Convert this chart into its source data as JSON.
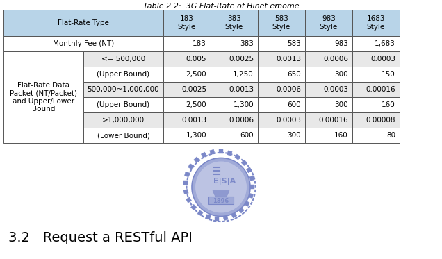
{
  "title": "Table 2.2:  3G Flat-Rate of Hinet emome",
  "col0_header": "Flat-Rate Type",
  "col_headers": [
    "183\nStyle",
    "383\nStyle",
    "583\nStyle",
    "983\nStyle",
    "1683\nStyle"
  ],
  "header_bg": "#b8d4e8",
  "monthly_fee_row": [
    "Monthly Fee (NT)",
    "183",
    "383",
    "583",
    "983",
    "1,683"
  ],
  "merged_label": "Flat-Rate Data\nPacket (NT/Packet)\nand Upper/Lower\nBound",
  "data_rows": [
    [
      "<= 500,000",
      "0.005",
      "0.0025",
      "0.0013",
      "0.0006",
      "0.0003"
    ],
    [
      "(Upper Bound)",
      "2,500",
      "1,250",
      "650",
      "300",
      "150"
    ],
    [
      "500,000~1,000,000",
      "0.0025",
      "0.0013",
      "0.0006",
      "0.0003",
      "0.00016"
    ],
    [
      "(Upper Bound)",
      "2,500",
      "1,300",
      "600",
      "300",
      "160"
    ],
    [
      ">1,000,000",
      "0.0013",
      "0.0006",
      "0.0003",
      "0.00016",
      "0.00008"
    ],
    [
      "(Lower Bound)",
      "1,300",
      "600",
      "300",
      "160",
      "80"
    ]
  ],
  "shade_color": "#e8e8e8",
  "shaded_data_rows": [
    0,
    2,
    4
  ],
  "white_color": "#ffffff",
  "border_color": "#555555",
  "text_color": "#000000",
  "title_fontsize": 8,
  "table_fontsize": 7.5,
  "section_label": "3.2   Request a RESTful API",
  "section_fontsize": 14,
  "logo_color": "#7b88c8",
  "logo_color_light": "#a0aad8"
}
